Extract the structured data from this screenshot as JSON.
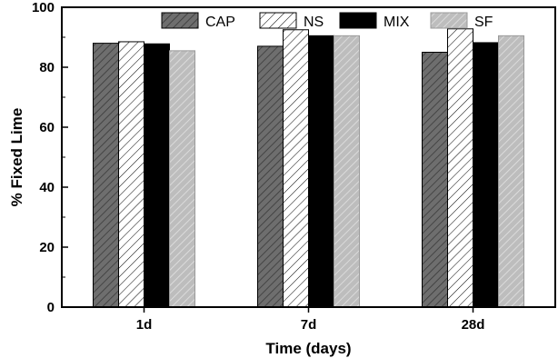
{
  "chart_data": {
    "type": "bar",
    "categories": [
      "1d",
      "7d",
      "28d"
    ],
    "series": [
      {
        "name": "CAP",
        "values": [
          88,
          87,
          85
        ]
      },
      {
        "name": "NS",
        "values": [
          88.5,
          92.5,
          92.8
        ]
      },
      {
        "name": "MIX",
        "values": [
          87.8,
          90.5,
          88.2
        ]
      },
      {
        "name": "SF",
        "values": [
          85.5,
          90.5,
          90.5
        ]
      }
    ],
    "xlabel": "Time (days)",
    "ylabel": "% Fixed Lime",
    "ylim": [
      0,
      100
    ],
    "yticks": [
      0,
      20,
      40,
      60,
      80,
      100
    ],
    "legend_position": "top-right",
    "grid": false,
    "colors": {
      "CAP": "#6e6e6e",
      "NS": "#ffffff",
      "MIX": "#000000",
      "SF": "#bdbdbd"
    }
  }
}
